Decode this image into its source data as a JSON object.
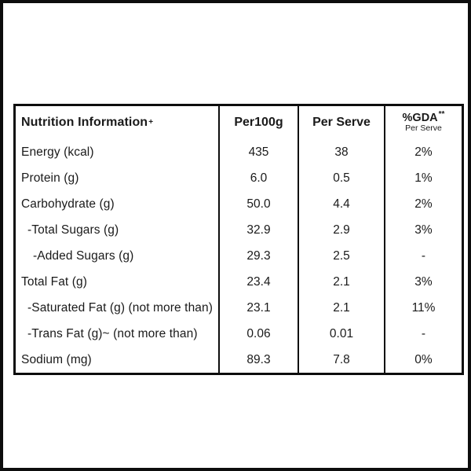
{
  "colors": {
    "frame": "#0d0d0d",
    "table_border": "#0d0d0d",
    "text": "#1a1a1a",
    "background": "#ffffff"
  },
  "table": {
    "header": {
      "nutrition_label": "Nutrition Information",
      "nutrition_sup": "+",
      "per_100g": "Per100g",
      "per_serve": "Per Serve",
      "gda": "%GDA",
      "gda_sup": "**",
      "gda_sub": "Per Serve"
    },
    "rows": [
      {
        "label": "Energy (kcal)",
        "per100g": "435",
        "per_serve": "38",
        "gda": "2%"
      },
      {
        "label": "Protein (g)",
        "per100g": "6.0",
        "per_serve": "0.5",
        "gda": "1%"
      },
      {
        "label": "Carbohydrate (g)",
        "per100g": "50.0",
        "per_serve": "4.4",
        "gda": "2%"
      },
      {
        "label": "-Total Sugars (g)",
        "per100g": "32.9",
        "per_serve": "2.9",
        "gda": "3%"
      },
      {
        "label": "-Added Sugars (g)",
        "per100g": "29.3",
        "per_serve": "2.5",
        "gda": "-"
      },
      {
        "label": "Total Fat (g)",
        "per100g": "23.4",
        "per_serve": "2.1",
        "gda": "3%"
      },
      {
        "label": "-Saturated Fat (g) (not more than)",
        "per100g": "23.1",
        "per_serve": "2.1",
        "gda": "11%"
      },
      {
        "label": "-Trans Fat (g)~ (not more than)",
        "per100g": "0.06",
        "per_serve": "0.01",
        "gda": "-"
      },
      {
        "label": "Sodium (mg)",
        "per100g": "89.3",
        "per_serve": "7.8",
        "gda": "0%"
      }
    ]
  }
}
